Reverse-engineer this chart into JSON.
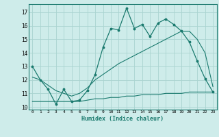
{
  "xlabel": "Humidex (Indice chaleur)",
  "xlim": [
    -0.5,
    23.5
  ],
  "ylim": [
    9.8,
    17.6
  ],
  "yticks": [
    10,
    11,
    12,
    13,
    14,
    15,
    16,
    17
  ],
  "xticks": [
    0,
    1,
    2,
    3,
    4,
    5,
    6,
    7,
    8,
    9,
    10,
    11,
    12,
    13,
    14,
    15,
    16,
    17,
    18,
    19,
    20,
    21,
    22,
    23
  ],
  "background_color": "#ceecea",
  "grid_color": "#aad4d0",
  "line_color": "#1a7a6e",
  "line1_x": [
    0,
    1,
    2,
    3,
    4,
    5,
    6,
    7,
    8,
    9,
    10,
    11,
    12,
    13,
    14,
    15,
    16,
    17,
    18,
    19,
    20,
    21,
    22,
    23
  ],
  "line1_y": [
    13.0,
    12.0,
    11.3,
    10.2,
    11.3,
    10.4,
    10.5,
    11.2,
    12.4,
    14.4,
    15.8,
    15.7,
    17.3,
    15.8,
    16.1,
    15.2,
    16.2,
    16.5,
    16.1,
    15.6,
    14.8,
    13.4,
    12.1,
    11.1
  ],
  "line2_x": [
    0,
    1,
    2,
    3,
    4,
    5,
    6,
    7,
    8,
    9,
    10,
    11,
    12,
    13,
    14,
    15,
    16,
    17,
    18,
    19,
    20,
    21,
    22,
    23
  ],
  "line2_y": [
    10.4,
    10.4,
    10.4,
    10.4,
    10.4,
    10.4,
    10.4,
    10.5,
    10.6,
    10.6,
    10.7,
    10.7,
    10.8,
    10.8,
    10.9,
    10.9,
    10.9,
    11.0,
    11.0,
    11.0,
    11.1,
    11.1,
    11.1,
    11.1
  ],
  "line3_x": [
    0,
    1,
    2,
    3,
    4,
    5,
    6,
    7,
    8,
    9,
    10,
    11,
    12,
    13,
    14,
    15,
    16,
    17,
    18,
    19,
    20,
    21,
    22,
    23
  ],
  "line3_y": [
    12.2,
    12.0,
    11.6,
    11.2,
    11.0,
    10.8,
    11.0,
    11.4,
    12.0,
    12.4,
    12.8,
    13.2,
    13.5,
    13.8,
    14.1,
    14.4,
    14.7,
    15.0,
    15.3,
    15.6,
    15.6,
    15.0,
    14.0,
    11.5
  ]
}
